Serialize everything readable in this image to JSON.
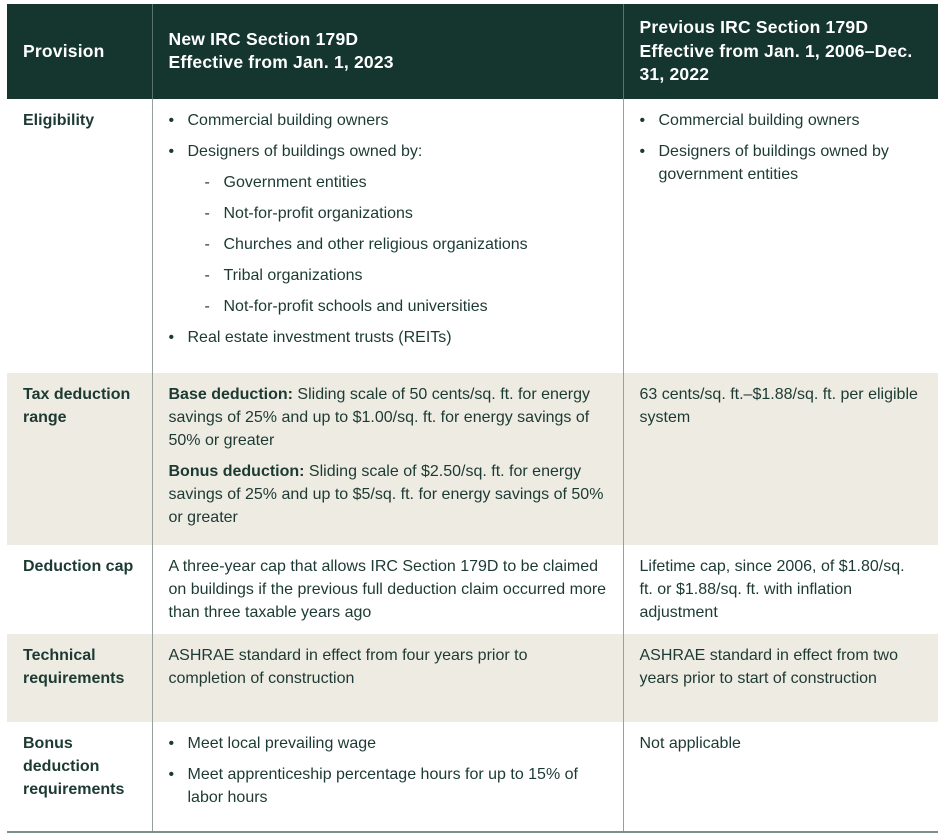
{
  "colors": {
    "header_bg": "#14362E",
    "header_text": "#FFFFFF",
    "body_text": "#1C3A33",
    "shaded_row_bg": "#EDEBE2",
    "divider": "#97A19B",
    "bottom_border": "#7E8E88"
  },
  "markers": {
    "bullet": "•",
    "dash": "-"
  },
  "table": {
    "headers": [
      "Provision",
      "New IRC Section 179D\nEffective from Jan. 1, 2023",
      "Previous IRC Section 179D Effective from Jan. 1, 2006–Dec. 31, 2022"
    ],
    "rows": [
      {
        "provision": "Eligibility",
        "shaded": false,
        "new": {
          "type": "bullets",
          "items": [
            {
              "text": "Commercial building owners"
            },
            {
              "text": "Designers of buildings owned by:",
              "sub": [
                {
                  "text": "Government entities"
                },
                {
                  "text": "Not-for-profit organizations"
                },
                {
                  "text": "Churches and other religious organizations"
                },
                {
                  "text": "Tribal organizations"
                },
                {
                  "text": "Not-for-profit schools and universities"
                }
              ]
            },
            {
              "text": "Real estate investment trusts (REITs)"
            }
          ]
        },
        "previous": {
          "type": "bullets",
          "items": [
            {
              "text": "Commercial building owners"
            },
            {
              "text": "Designers of buildings owned by government entities"
            }
          ]
        }
      },
      {
        "provision": "Tax deduction range",
        "shaded": true,
        "new": {
          "type": "paragraphs",
          "items": [
            {
              "lead": "Base deduction:",
              "text": " Sliding scale of 50 cents/sq. ft. for energy savings of 25% and up to $1.00/sq. ft. for energy savings of 50% or greater"
            },
            {
              "lead": "Bonus deduction:",
              "text": " Sliding scale of $2.50/sq. ft. for energy savings of 25% and up to $5/sq. ft. for energy savings of 50% or greater"
            }
          ]
        },
        "previous": {
          "type": "text",
          "text": "63 cents/sq. ft.–$1.88/sq. ft. per eligible system"
        }
      },
      {
        "provision": "Deduction cap",
        "shaded": false,
        "new": {
          "type": "text",
          "text": "A three-year cap that allows IRC Section 179D to be claimed on buildings if the previous full deduction claim occurred more than three taxable years ago"
        },
        "previous": {
          "type": "text",
          "text": "Lifetime cap, since 2006, of $1.80/sq. ft. or $1.88/sq. ft. with inflation adjustment"
        }
      },
      {
        "provision": "Technical requirements",
        "shaded": true,
        "new": {
          "type": "text",
          "text": "ASHRAE standard in effect from four years prior to completion of construction"
        },
        "previous": {
          "type": "text",
          "text": "ASHRAE standard in effect from two years prior to start of construction"
        }
      },
      {
        "provision": "Bonus deduction requirements",
        "shaded": false,
        "new": {
          "type": "bullets",
          "items": [
            {
              "text": "Meet local prevailing wage"
            },
            {
              "text": "Meet apprenticeship percentage hours for up to 15% of labor hours"
            }
          ]
        },
        "previous": {
          "type": "text",
          "text": "Not applicable"
        }
      }
    ]
  }
}
